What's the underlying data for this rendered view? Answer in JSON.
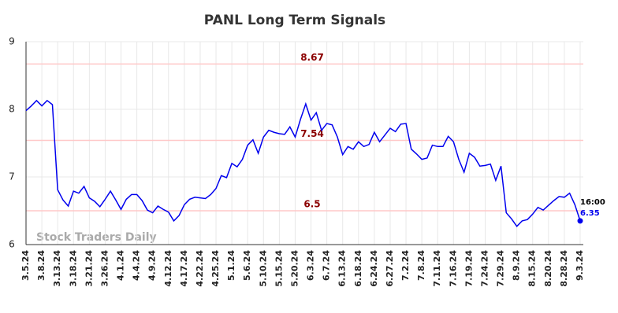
{
  "chart_data": {
    "type": "line",
    "title": "PANL Long Term Signals",
    "categories": [
      "3.5.24",
      null,
      null,
      "3.8.24",
      null,
      null,
      "3.13.24",
      null,
      null,
      "3.18.24",
      null,
      null,
      "3.21.24",
      null,
      null,
      "3.26.24",
      null,
      null,
      "4.1.24",
      null,
      null,
      "4.4.24",
      null,
      null,
      "4.9.24",
      null,
      null,
      "4.12.24",
      null,
      null,
      "4.17.24",
      null,
      null,
      "4.22.24",
      null,
      null,
      "4.25.24",
      null,
      null,
      "5.1.24",
      null,
      null,
      "5.6.24",
      null,
      null,
      "5.10.24",
      null,
      null,
      "5.15.24",
      null,
      null,
      "5.20.24",
      null,
      null,
      "6.3.24",
      null,
      null,
      "6.7.24",
      null,
      null,
      "6.13.24",
      null,
      null,
      "6.18.24",
      null,
      null,
      "6.24.24",
      null,
      null,
      "6.27.24",
      null,
      null,
      "7.2.24",
      null,
      null,
      "7.8.24",
      null,
      null,
      "7.11.24",
      null,
      null,
      "7.16.24",
      null,
      null,
      "7.19.24",
      null,
      null,
      "7.24.24",
      null,
      null,
      "7.29.24",
      null,
      null,
      "8.9.24",
      null,
      null,
      "8.15.24",
      null,
      null,
      "8.20.24",
      null,
      null,
      "8.28.24",
      null,
      null,
      "9.3.24"
    ],
    "values": [
      7.98,
      8.05,
      8.13,
      8.05,
      8.13,
      8.07,
      6.81,
      6.66,
      6.57,
      6.79,
      6.76,
      6.86,
      6.69,
      6.64,
      6.56,
      6.67,
      6.79,
      6.66,
      6.52,
      6.67,
      6.74,
      6.74,
      6.65,
      6.51,
      6.47,
      6.57,
      6.52,
      6.48,
      6.35,
      6.43,
      6.59,
      6.67,
      6.7,
      6.69,
      6.68,
      6.74,
      6.83,
      7.02,
      6.99,
      7.2,
      7.15,
      7.26,
      7.47,
      7.55,
      7.35,
      7.59,
      7.69,
      7.66,
      7.64,
      7.63,
      7.74,
      7.59,
      7.85,
      8.08,
      7.84,
      7.95,
      7.69,
      7.79,
      7.77,
      7.59,
      7.33,
      7.45,
      7.41,
      7.52,
      7.45,
      7.48,
      7.66,
      7.52,
      7.62,
      7.72,
      7.67,
      7.78,
      7.79,
      7.41,
      7.34,
      7.26,
      7.28,
      7.47,
      7.45,
      7.45,
      7.6,
      7.52,
      7.26,
      7.07,
      7.35,
      7.29,
      7.16,
      7.17,
      7.19,
      6.95,
      7.16,
      6.47,
      6.38,
      6.27,
      6.35,
      6.37,
      6.45,
      6.55,
      6.51,
      6.58,
      6.65,
      6.71,
      6.7,
      6.76,
      6.59,
      6.35
    ],
    "color": "#0000ee",
    "ylim": [
      6,
      9
    ],
    "yticks": [
      6,
      7,
      8,
      9
    ],
    "grid": true,
    "hlines": [
      {
        "value": 8.67
      },
      {
        "value": 7.54
      },
      {
        "value": 6.5
      }
    ],
    "hline_color": "#ffc8c8",
    "hline_label_color": "#8b0000",
    "last_time": "16:00",
    "watermark": "Stock Traders Daily"
  }
}
